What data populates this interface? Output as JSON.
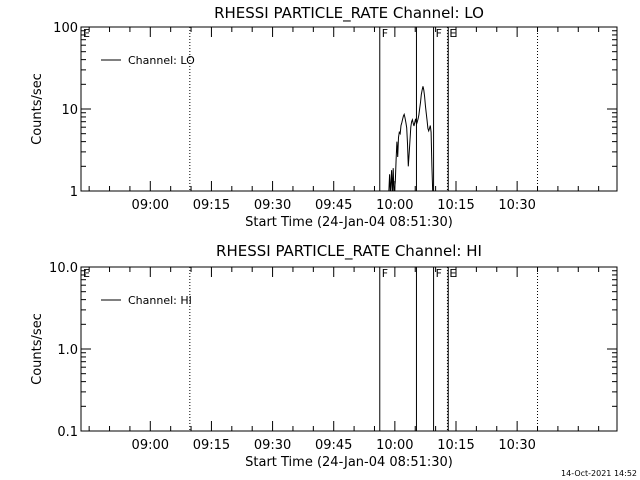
{
  "footer": {
    "timestamp": "14-Oct-2021 14:52"
  },
  "chart_data": [
    {
      "type": "line",
      "title": "RHESSI PARTICLE_RATE Channel: LO",
      "xlabel": "Start Time (24-Jan-04 08:51:30)",
      "ylabel": "Counts/sec",
      "yscale": "log",
      "ylim": [
        1,
        100
      ],
      "xlim_min": [
        -8.5,
        123
      ],
      "yticks": [
        1,
        10,
        100
      ],
      "ytick_labels": [
        "1",
        "10",
        "100"
      ],
      "xticks": [
        8.5,
        23.5,
        38.5,
        53.5,
        68.5,
        83.5,
        98.5
      ],
      "xtick_labels": [
        "09:00",
        "09:15",
        "09:30",
        "09:45",
        "10:00",
        "10:15",
        "10:30"
      ],
      "legend": {
        "label": "Channel: LO",
        "position": "top-left"
      },
      "flags": [
        {
          "label": "E",
          "x": -8.5,
          "style": "none"
        },
        {
          "label": "",
          "x": 18.2,
          "style": "dotted"
        },
        {
          "label": "F",
          "x": 64.8,
          "style": "solid"
        },
        {
          "label": "",
          "x": 73.8,
          "style": "solid"
        },
        {
          "label": "F",
          "x": 78.0,
          "style": "solid"
        },
        {
          "label": "E",
          "x": 81.4,
          "style": "dotted"
        },
        {
          "label": "",
          "x": 81.6,
          "style": "solid"
        },
        {
          "label": "",
          "x": 103.5,
          "style": "dotted"
        }
      ],
      "grid": false,
      "series": [
        {
          "values": [
            [
              67.0,
              0.9
            ],
            [
              67.2,
              1.6
            ],
            [
              67.4,
              0.9
            ],
            [
              67.7,
              1.8
            ],
            [
              67.9,
              0.9
            ],
            [
              68.1,
              1.9
            ],
            [
              68.3,
              0.9
            ],
            [
              68.6,
              1.3
            ],
            [
              68.8,
              2.4
            ],
            [
              69.0,
              4.0
            ],
            [
              69.2,
              2.6
            ],
            [
              69.4,
              4.5
            ],
            [
              69.6,
              5.2
            ],
            [
              69.8,
              5.0
            ],
            [
              70.0,
              6.3
            ],
            [
              70.2,
              6.8
            ],
            [
              70.4,
              7.5
            ],
            [
              70.6,
              8.2
            ],
            [
              70.8,
              8.6
            ],
            [
              71.0,
              7.8
            ],
            [
              71.2,
              6.8
            ],
            [
              71.4,
              5.9
            ],
            [
              71.6,
              3.8
            ],
            [
              71.8,
              2.0
            ],
            [
              72.0,
              2.8
            ],
            [
              72.2,
              4.0
            ],
            [
              72.4,
              6.0
            ],
            [
              72.6,
              7.0
            ],
            [
              72.8,
              7.4
            ],
            [
              73.0,
              6.7
            ],
            [
              73.2,
              6.2
            ],
            [
              73.4,
              6.9
            ],
            [
              73.6,
              7.6
            ],
            [
              73.8,
              6.5
            ],
            [
              74.0,
              7.0
            ],
            [
              74.2,
              7.6
            ],
            [
              74.4,
              8.5
            ],
            [
              74.6,
              10.2
            ],
            [
              74.8,
              12.0
            ],
            [
              75.0,
              15.0
            ],
            [
              75.2,
              17.2
            ],
            [
              75.4,
              18.9
            ],
            [
              75.6,
              17.0
            ],
            [
              75.8,
              14.2
            ],
            [
              76.0,
              11.0
            ],
            [
              76.2,
              9.0
            ],
            [
              76.4,
              7.2
            ],
            [
              76.6,
              5.8
            ],
            [
              76.8,
              5.4
            ],
            [
              77.0,
              5.8
            ],
            [
              77.2,
              6.3
            ],
            [
              77.4,
              5.2
            ],
            [
              77.6,
              2.0
            ],
            [
              77.8,
              0.9
            ]
          ]
        }
      ]
    },
    {
      "type": "line",
      "title": "RHESSI PARTICLE_RATE Channel: HI",
      "xlabel": "Start Time (24-Jan-04 08:51:30)",
      "ylabel": "Counts/sec",
      "yscale": "log",
      "ylim": [
        0.1,
        10.0
      ],
      "xlim_min": [
        -8.5,
        123
      ],
      "yticks": [
        0.1,
        1.0,
        10.0
      ],
      "ytick_labels": [
        "0.1",
        "1.0",
        "10.0"
      ],
      "xticks": [
        8.5,
        23.5,
        38.5,
        53.5,
        68.5,
        83.5,
        98.5
      ],
      "xtick_labels": [
        "09:00",
        "09:15",
        "09:30",
        "09:45",
        "10:00",
        "10:15",
        "10:30"
      ],
      "legend": {
        "label": "Channel: HI",
        "position": "top-left"
      },
      "flags": [
        {
          "label": "E",
          "x": -8.5,
          "style": "none"
        },
        {
          "label": "",
          "x": 18.2,
          "style": "dotted"
        },
        {
          "label": "F",
          "x": 64.8,
          "style": "solid"
        },
        {
          "label": "",
          "x": 73.8,
          "style": "solid"
        },
        {
          "label": "F",
          "x": 78.0,
          "style": "solid"
        },
        {
          "label": "E",
          "x": 81.4,
          "style": "dotted"
        },
        {
          "label": "",
          "x": 81.6,
          "style": "solid"
        },
        {
          "label": "",
          "x": 103.5,
          "style": "dotted"
        }
      ],
      "grid": false,
      "series": [
        {
          "values": []
        }
      ]
    }
  ]
}
